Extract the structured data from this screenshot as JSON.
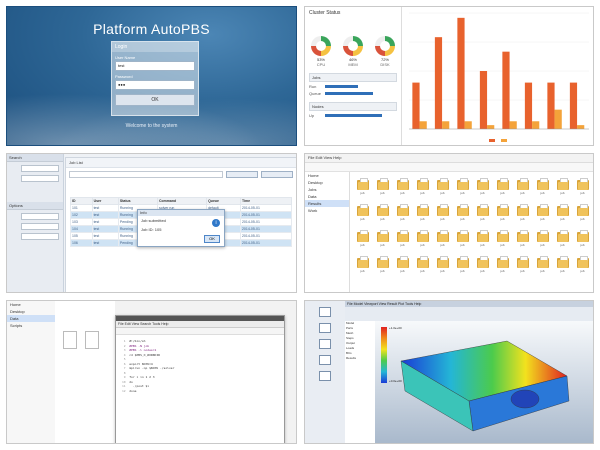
{
  "login": {
    "title": "Platform AutoPBS",
    "box_header": "Login",
    "username_label": "User Name",
    "username_value": "test",
    "password_label": "Password",
    "password_value": "●●●",
    "submit_label": "OK",
    "footer_text": "Welcome to the system"
  },
  "dashboard": {
    "header": "Cluster Status",
    "gauges": [
      {
        "value": "53%",
        "caption": "CPU"
      },
      {
        "value": "46%",
        "caption": "MEM"
      },
      {
        "value": "72%",
        "caption": "DISK"
      }
    ],
    "sections": [
      {
        "title": "Jobs",
        "rows": [
          {
            "k": "Run",
            "v": 0.55
          },
          {
            "k": "Queue",
            "v": 0.8
          }
        ]
      },
      {
        "title": "Nodes",
        "rows": [
          {
            "k": "Up",
            "v": 0.95
          }
        ]
      }
    ],
    "colors": {
      "primary": "#e8622d",
      "secondary": "#f4a33a",
      "bar": "#2f6fb8"
    }
  },
  "chart_data": {
    "type": "bar",
    "categories": [
      "",
      "",
      "",
      "",
      "",
      "",
      "",
      ""
    ],
    "series": [
      {
        "values": [
          48,
          95,
          115,
          60,
          80,
          48,
          48,
          48
        ]
      },
      {
        "values": [
          8,
          8,
          8,
          4,
          8,
          8,
          20,
          4
        ]
      }
    ],
    "ylim": [
      0,
      120
    ],
    "grid": true
  },
  "jobs": {
    "side_header": "Search",
    "side_header2": "Options",
    "title": "Job List",
    "columns": [
      "ID",
      "User",
      "Status",
      "Command",
      "Queue",
      "Time"
    ],
    "rows": [
      [
        "101",
        "test",
        "Running",
        "solver run",
        "default",
        "2014-05-01"
      ],
      [
        "102",
        "test",
        "Running",
        "solver run",
        "default",
        "2014-05-01"
      ],
      [
        "103",
        "test",
        "Pending",
        "solver run",
        "default",
        "2014-05-01"
      ],
      [
        "104",
        "test",
        "Running",
        "solver run",
        "default",
        "2014-05-01"
      ],
      [
        "105",
        "test",
        "Running",
        "solver run",
        "default",
        "2014-05-01"
      ],
      [
        "106",
        "test",
        "Pending",
        "solver run",
        "default",
        "2014-05-01"
      ]
    ],
    "dialog": {
      "title": "Info",
      "line1": "Job submitted",
      "line2": "Job ID: 105",
      "ok": "OK"
    }
  },
  "files": {
    "menu": "File  Edit  View  Help",
    "tree": [
      "Home",
      "Desktop",
      "Jobs",
      "Data",
      "Results",
      "Work"
    ],
    "selected_index": 4,
    "folder_caption": "job"
  },
  "editor": {
    "side": [
      "Home",
      "Desktop",
      "Data",
      "Scripts"
    ],
    "selected_index": 2,
    "menu": "File  Edit  View  Search  Tools  Help",
    "code_lines": [
      "#!/bin/sh",
      "#PBS -N job",
      "#PBS -l nodes=1",
      "cd $PBS_O_WORKDIR",
      "",
      "export NCPU=4",
      "mpirun -np $NCPU ./solver",
      "",
      "for i in 1 2 3",
      "do",
      "  ./post $i",
      "done"
    ]
  },
  "cae": {
    "menu": "File  Model  Viewport  View  Result  Plot  Tools  Help",
    "tree": [
      "Model",
      "Parts",
      "Mesh",
      "Steps",
      "Output",
      "Loads",
      "BCs",
      "Results"
    ],
    "legend_top": "+1.0e+00",
    "legend_bottom": "+0.0e+00"
  }
}
